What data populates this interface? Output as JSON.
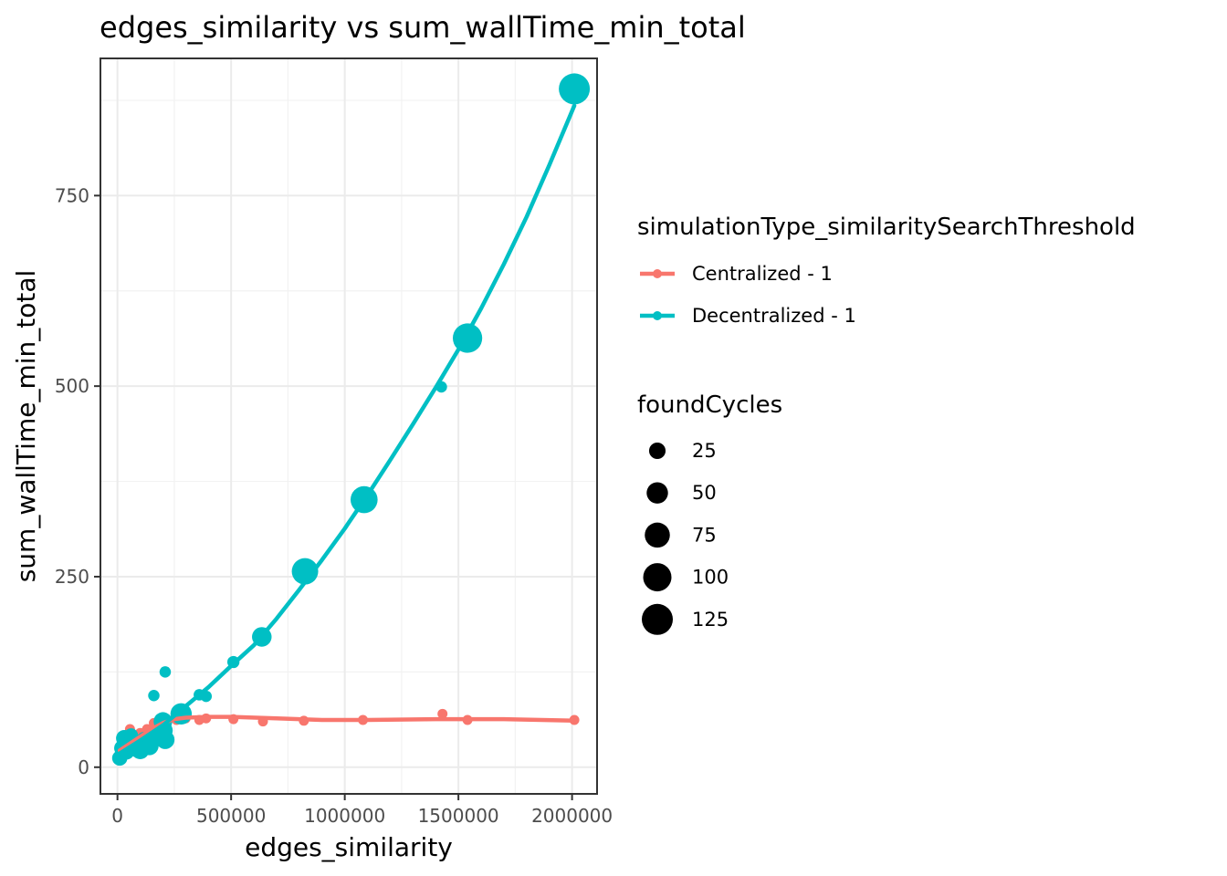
{
  "chart_data": {
    "type": "scatter",
    "title": "edges_similarity  vs  sum_wallTime_min_total",
    "xlabel": "edges_similarity",
    "ylabel": "sum_wallTime_min_total",
    "xlim": [
      -75000,
      2110000
    ],
    "ylim": [
      -35,
      930
    ],
    "x_ticks": [
      0,
      500000,
      1000000,
      1500000,
      2000000
    ],
    "x_tick_labels": [
      "0",
      "500000",
      "1000000",
      "1500000",
      "2000000"
    ],
    "y_ticks": [
      0,
      250,
      500,
      750
    ],
    "y_tick_labels": [
      "0",
      "250",
      "500",
      "750"
    ],
    "grid": true,
    "legend_placement": "right",
    "legend_color_title": "simulationType_similaritySearchThreshold",
    "legend_size_title": "foundCycles",
    "size_legend": [
      {
        "label": "25",
        "value": 25
      },
      {
        "label": "50",
        "value": 50
      },
      {
        "label": "75",
        "value": 75
      },
      {
        "label": "100",
        "value": 100
      },
      {
        "label": "125",
        "value": 125
      }
    ],
    "series": [
      {
        "name": "Centralized - 1",
        "color": "#F8766D",
        "points": [
          {
            "x": 10000,
            "y": 14,
            "size": 5
          },
          {
            "x": 20000,
            "y": 20,
            "size": 5
          },
          {
            "x": 30000,
            "y": 25,
            "size": 5
          },
          {
            "x": 45000,
            "y": 35,
            "size": 5
          },
          {
            "x": 55000,
            "y": 50,
            "size": 5
          },
          {
            "x": 80000,
            "y": 40,
            "size": 5
          },
          {
            "x": 100000,
            "y": 45,
            "size": 5
          },
          {
            "x": 130000,
            "y": 50,
            "size": 5
          },
          {
            "x": 160000,
            "y": 58,
            "size": 5
          },
          {
            "x": 210000,
            "y": 60,
            "size": 5
          },
          {
            "x": 260000,
            "y": 62,
            "size": 5
          },
          {
            "x": 300000,
            "y": 64,
            "size": 5
          },
          {
            "x": 360000,
            "y": 62,
            "size": 5
          },
          {
            "x": 390000,
            "y": 64,
            "size": 5
          },
          {
            "x": 510000,
            "y": 63,
            "size": 5
          },
          {
            "x": 640000,
            "y": 60,
            "size": 5
          },
          {
            "x": 820000,
            "y": 61,
            "size": 5
          },
          {
            "x": 1080000,
            "y": 62,
            "size": 5
          },
          {
            "x": 1430000,
            "y": 70,
            "size": 5
          },
          {
            "x": 1540000,
            "y": 62,
            "size": 5
          },
          {
            "x": 2010000,
            "y": 62,
            "size": 5
          }
        ],
        "trend": [
          {
            "x": 10000,
            "y": 22
          },
          {
            "x": 50000,
            "y": 30
          },
          {
            "x": 100000,
            "y": 40
          },
          {
            "x": 150000,
            "y": 50
          },
          {
            "x": 200000,
            "y": 58
          },
          {
            "x": 250000,
            "y": 63
          },
          {
            "x": 300000,
            "y": 65
          },
          {
            "x": 400000,
            "y": 66
          },
          {
            "x": 500000,
            "y": 66
          },
          {
            "x": 700000,
            "y": 64
          },
          {
            "x": 900000,
            "y": 62
          },
          {
            "x": 1100000,
            "y": 62
          },
          {
            "x": 1400000,
            "y": 63
          },
          {
            "x": 1700000,
            "y": 63
          },
          {
            "x": 2010000,
            "y": 61
          }
        ]
      },
      {
        "name": "Decentralized - 1",
        "color": "#00BFC4",
        "points": [
          {
            "x": 10000,
            "y": 12,
            "size": 20
          },
          {
            "x": 20000,
            "y": 25,
            "size": 22
          },
          {
            "x": 30000,
            "y": 38,
            "size": 25
          },
          {
            "x": 40000,
            "y": 20,
            "size": 20
          },
          {
            "x": 50000,
            "y": 30,
            "size": 25
          },
          {
            "x": 60000,
            "y": 42,
            "size": 15
          },
          {
            "x": 80000,
            "y": 25,
            "size": 30
          },
          {
            "x": 100000,
            "y": 22,
            "size": 30
          },
          {
            "x": 120000,
            "y": 35,
            "size": 30
          },
          {
            "x": 140000,
            "y": 28,
            "size": 35
          },
          {
            "x": 160000,
            "y": 94,
            "size": 8
          },
          {
            "x": 170000,
            "y": 40,
            "size": 35
          },
          {
            "x": 200000,
            "y": 60,
            "size": 35
          },
          {
            "x": 200000,
            "y": 48,
            "size": 40
          },
          {
            "x": 210000,
            "y": 125,
            "size": 8
          },
          {
            "x": 210000,
            "y": 36,
            "size": 35
          },
          {
            "x": 280000,
            "y": 70,
            "size": 50
          },
          {
            "x": 360000,
            "y": 95,
            "size": 8
          },
          {
            "x": 390000,
            "y": 93,
            "size": 8
          },
          {
            "x": 510000,
            "y": 138,
            "size": 10
          },
          {
            "x": 635000,
            "y": 171,
            "size": 40
          },
          {
            "x": 825000,
            "y": 257,
            "size": 85
          },
          {
            "x": 1085000,
            "y": 351,
            "size": 90
          },
          {
            "x": 1425000,
            "y": 499,
            "size": 8
          },
          {
            "x": 1540000,
            "y": 563,
            "size": 110
          },
          {
            "x": 2010000,
            "y": 890,
            "size": 125
          }
        ],
        "trend": [
          {
            "x": 10000,
            "y": 18
          },
          {
            "x": 100000,
            "y": 35
          },
          {
            "x": 200000,
            "y": 55
          },
          {
            "x": 300000,
            "y": 80
          },
          {
            "x": 400000,
            "y": 105
          },
          {
            "x": 500000,
            "y": 133
          },
          {
            "x": 600000,
            "y": 160
          },
          {
            "x": 700000,
            "y": 195
          },
          {
            "x": 800000,
            "y": 233
          },
          {
            "x": 900000,
            "y": 272
          },
          {
            "x": 1000000,
            "y": 313
          },
          {
            "x": 1100000,
            "y": 357
          },
          {
            "x": 1200000,
            "y": 403
          },
          {
            "x": 1300000,
            "y": 450
          },
          {
            "x": 1400000,
            "y": 498
          },
          {
            "x": 1500000,
            "y": 548
          },
          {
            "x": 1600000,
            "y": 602
          },
          {
            "x": 1700000,
            "y": 660
          },
          {
            "x": 1800000,
            "y": 722
          },
          {
            "x": 1900000,
            "y": 790
          },
          {
            "x": 2010000,
            "y": 868
          }
        ]
      }
    ]
  }
}
